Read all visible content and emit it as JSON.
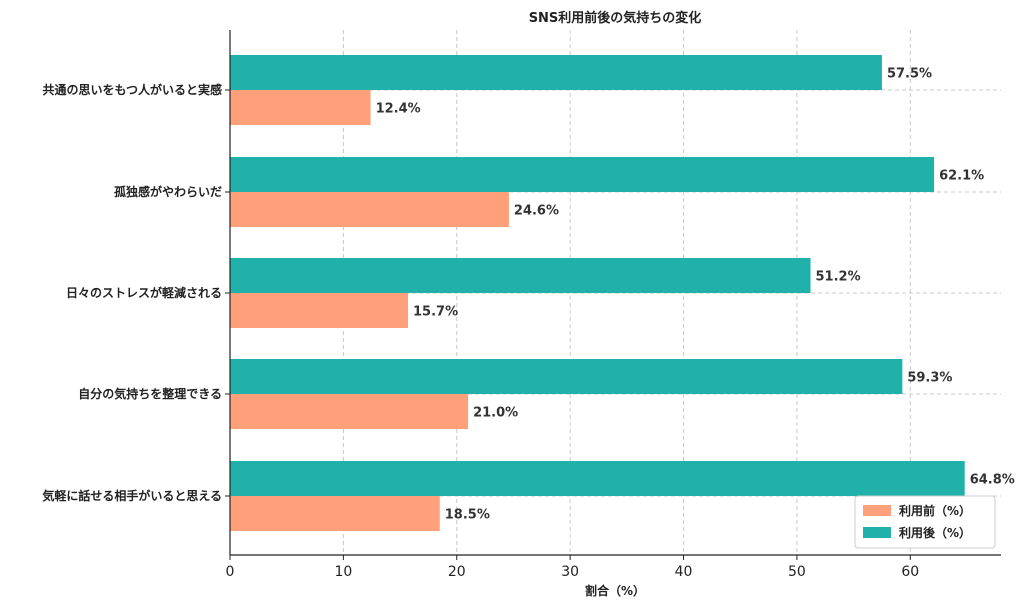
{
  "chart_data": {
    "type": "bar",
    "orientation": "horizontal",
    "title": "SNS利用前後の気持ちの変化",
    "xlabel": "割合（%）",
    "ylabel": "",
    "xlim": [
      0,
      68
    ],
    "xticks": [
      0,
      10,
      20,
      30,
      40,
      50,
      60
    ],
    "grid": true,
    "legend_position": "bottom-right",
    "categories": [
      "共通の思いをもつ人がいると実感",
      "孤独感がやわらいだ",
      "日々のストレスが軽減される",
      "自分の気持ちを整理できる",
      "気軽に話せる相手がいると思える"
    ],
    "series": [
      {
        "name": "利用前（%）",
        "color": "#FFA07A",
        "values": [
          12.4,
          24.6,
          15.7,
          21.0,
          18.5
        ],
        "labels": [
          "12.4%",
          "24.6%",
          "15.7%",
          "21.0%",
          "18.5%"
        ]
      },
      {
        "name": "利用後（%）",
        "color": "#20B2AA",
        "values": [
          57.5,
          62.1,
          51.2,
          59.3,
          64.8
        ],
        "labels": [
          "57.5%",
          "62.1%",
          "51.2%",
          "59.3%",
          "64.8%"
        ]
      }
    ]
  }
}
